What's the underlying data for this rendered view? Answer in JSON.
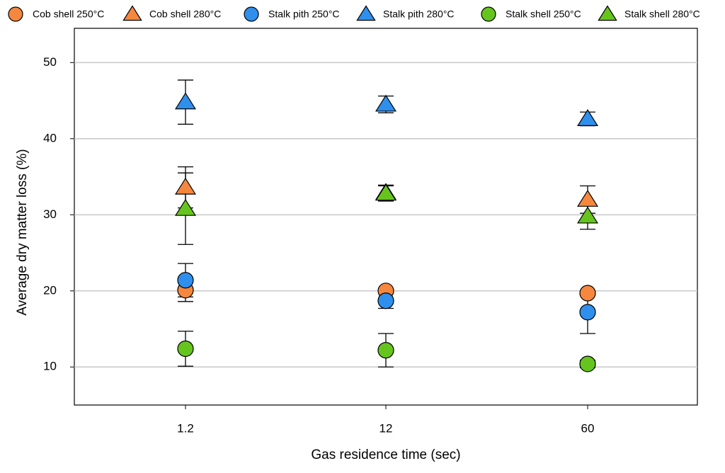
{
  "chart_data": {
    "type": "scatter",
    "x_label": "Gas residence time (sec)",
    "y_label": "Average dry matter loss (%)",
    "categories": [
      "1.2",
      "12",
      "60"
    ],
    "ylim": [
      5,
      54.5
    ],
    "yticks": [
      10,
      20,
      30,
      40,
      50
    ],
    "grid": true,
    "legend": "top",
    "series": [
      {
        "name": "Cob shell 250°C",
        "color": "#f5873f",
        "marker": "circle",
        "values": [
          20.1,
          20.0,
          19.7
        ],
        "errors": [
          1.5,
          0.3,
          0.3
        ]
      },
      {
        "name": "Cob shell 280°C",
        "color": "#f5873f",
        "marker": "triangle",
        "values": [
          33.6,
          32.9,
          32.0
        ],
        "errors": [
          2.7,
          1.0,
          1.8
        ]
      },
      {
        "name": "Stalk pith 250°C",
        "color": "#2f8fec",
        "marker": "circle",
        "values": [
          21.4,
          18.7,
          17.2
        ],
        "errors": [
          2.2,
          1.0,
          2.8
        ]
      },
      {
        "name": "Stalk pith 280°C",
        "color": "#2f8fec",
        "marker": "triangle",
        "values": [
          44.8,
          44.5,
          42.6
        ],
        "errors": [
          2.9,
          1.1,
          0.9
        ]
      },
      {
        "name": "Stalk shell 250°C",
        "color": "#66c41e",
        "marker": "circle",
        "values": [
          12.4,
          12.2,
          10.4
        ],
        "errors": [
          2.3,
          2.2,
          0.5
        ]
      },
      {
        "name": "Stalk shell 280°C",
        "color": "#66c41e",
        "marker": "triangle",
        "values": [
          30.8,
          32.8,
          29.8
        ],
        "errors": [
          4.7,
          1.0,
          1.7
        ]
      }
    ]
  }
}
